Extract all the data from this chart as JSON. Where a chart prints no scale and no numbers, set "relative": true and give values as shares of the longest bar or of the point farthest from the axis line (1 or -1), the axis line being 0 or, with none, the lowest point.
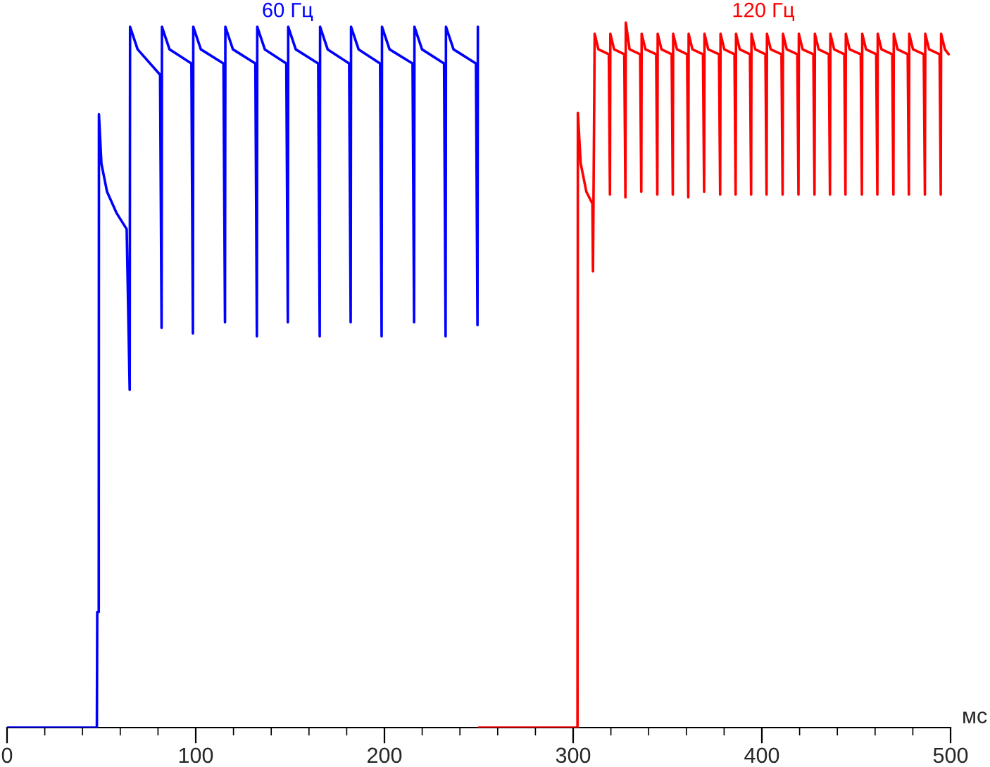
{
  "chart_data": {
    "type": "line",
    "relative": true,
    "xlabel": "мс",
    "xlim": [
      0,
      500
    ],
    "xticks": [
      0,
      {
        "value": 20,
        "label": null
      },
      {
        "value": 40,
        "label": null
      },
      {
        "value": 60,
        "label": null
      },
      {
        "value": 80,
        "label": null
      },
      100,
      {
        "value": 120,
        "label": null
      },
      {
        "value": 140,
        "label": null
      },
      {
        "value": 160,
        "label": null
      },
      {
        "value": 180,
        "label": null
      },
      200,
      {
        "value": 220,
        "label": null
      },
      {
        "value": 240,
        "label": null
      },
      {
        "value": 260,
        "label": null
      },
      {
        "value": 280,
        "label": null
      },
      300,
      {
        "value": 320,
        "label": null
      },
      {
        "value": 340,
        "label": null
      },
      {
        "value": 360,
        "label": null
      },
      {
        "value": 380,
        "label": null
      },
      400,
      {
        "value": 420,
        "label": null
      },
      {
        "value": 440,
        "label": null
      },
      {
        "value": 460,
        "label": null
      },
      {
        "value": 480,
        "label": null
      },
      500
    ],
    "grid": false,
    "legend": false,
    "marker": "none",
    "line_style": "solid",
    "series": [
      {
        "name": "60 Гц",
        "color": "#0000ff",
        "x": [
          0,
          47.6,
          47.8,
          48.6,
          48.7,
          50,
          53,
          58,
          63.4,
          65.0,
          65.2,
          69.2,
          81.1,
          81.9,
          82.1,
          86.1,
          97.7,
          98.5,
          98.7,
          102.7,
          114.7,
          115.5,
          115.7,
          119.7,
          131.6,
          132.4,
          132.6,
          136.6,
          148.0,
          148.8,
          149.0,
          153.0,
          164.9,
          165.7,
          165.9,
          169.9,
          181.3,
          182.1,
          182.3,
          186.3,
          197.7,
          198.5,
          198.7,
          202.7,
          214.9,
          215.7,
          215.9,
          219.9,
          231.6,
          232.4,
          232.6,
          236.6,
          248.5,
          249.3,
          249.5
        ],
        "values": [
          0,
          0,
          0.164,
          0.164,
          0.87,
          0.8,
          0.76,
          0.73,
          0.707,
          0.479,
          0.994,
          0.962,
          0.926,
          0.567,
          0.994,
          0.962,
          0.942,
          0.559,
          0.994,
          0.962,
          0.942,
          0.575,
          0.994,
          0.962,
          0.942,
          0.555,
          0.994,
          0.962,
          0.942,
          0.575,
          0.994,
          0.962,
          0.942,
          0.555,
          0.994,
          0.962,
          0.942,
          0.575,
          0.994,
          0.962,
          0.942,
          0.555,
          0.994,
          0.962,
          0.942,
          0.575,
          0.994,
          0.962,
          0.942,
          0.555,
          0.994,
          0.962,
          0.942,
          0.571,
          0.994
        ]
      },
      {
        "name": "120 Гц",
        "color": "#ff0000",
        "x": [
          250,
          302.3,
          302.5,
          304,
          307,
          310.2,
          310.5,
          311.2,
          311.4,
          313.4,
          318.9,
          319.5,
          319.7,
          321.7,
          327.1,
          327.7,
          327.9,
          329.9,
          335.5,
          336.1,
          336.3,
          338.3,
          344.0,
          344.6,
          344.8,
          346.8,
          352.2,
          352.8,
          353.0,
          355.0,
          360.4,
          361.0,
          361.2,
          363.2,
          368.8,
          369.4,
          369.6,
          371.6,
          377.3,
          377.9,
          378.1,
          380.1,
          385.5,
          386.1,
          386.3,
          388.3,
          393.7,
          394.3,
          394.5,
          396.5,
          401.9,
          402.5,
          402.7,
          404.7,
          410.4,
          411.0,
          411.2,
          413.2,
          418.8,
          419.4,
          419.6,
          421.6,
          427.3,
          427.9,
          428.1,
          430.1,
          435.5,
          436.1,
          436.3,
          438.3,
          443.7,
          444.3,
          444.5,
          446.5,
          452.4,
          453.0,
          453.2,
          455.2,
          460.6,
          461.2,
          461.4,
          463.4,
          469.1,
          469.7,
          469.9,
          471.9,
          477.3,
          477.9,
          478.1,
          480.1,
          485.8,
          486.4,
          486.6,
          488.6,
          494.2,
          494.8,
          495.0,
          497.0,
          499.0
        ],
        "values": [
          0,
          0,
          0.872,
          0.8,
          0.76,
          0.743,
          0.647,
          0.9,
          0.984,
          0.962,
          0.955,
          0.756,
          0.984,
          0.962,
          0.955,
          0.752,
          1.0,
          0.962,
          0.955,
          0.76,
          0.984,
          0.962,
          0.955,
          0.756,
          0.984,
          0.962,
          0.955,
          0.756,
          0.984,
          0.962,
          0.955,
          0.752,
          0.984,
          0.962,
          0.955,
          0.76,
          0.984,
          0.962,
          0.955,
          0.756,
          0.984,
          0.962,
          0.955,
          0.756,
          0.984,
          0.962,
          0.955,
          0.756,
          0.984,
          0.962,
          0.955,
          0.756,
          0.984,
          0.962,
          0.955,
          0.756,
          0.984,
          0.962,
          0.955,
          0.756,
          0.984,
          0.962,
          0.955,
          0.756,
          0.984,
          0.962,
          0.955,
          0.756,
          0.984,
          0.962,
          0.955,
          0.756,
          0.984,
          0.962,
          0.955,
          0.756,
          0.984,
          0.962,
          0.955,
          0.756,
          0.984,
          0.962,
          0.955,
          0.756,
          0.984,
          0.962,
          0.955,
          0.756,
          0.984,
          0.962,
          0.955,
          0.756,
          0.984,
          0.962,
          0.955,
          0.756,
          0.984,
          0.962,
          0.955
        ]
      }
    ]
  }
}
